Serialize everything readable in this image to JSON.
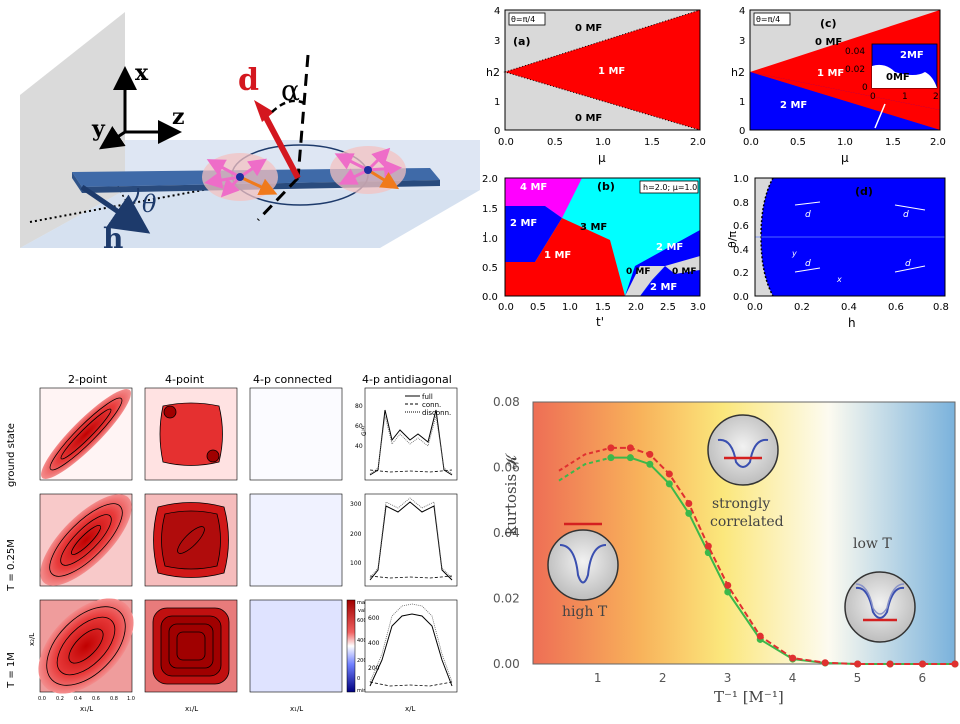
{
  "schematic": {
    "axis_x": "x",
    "axis_y": "y",
    "axis_z": "z",
    "vec_d": "d",
    "angle_alpha": "α",
    "angle_theta": "θ",
    "vec_h": "h"
  },
  "panel_a": {
    "tag": "θ=π/4",
    "label": "(a)",
    "xlabel": "μ",
    "h2": "h2",
    "xticks": [
      "0.0",
      "0.5",
      "1.0",
      "1.5",
      "2.0"
    ],
    "yticks": [
      "0",
      "1",
      "2",
      "3",
      "4"
    ],
    "regions": [
      "0 MF",
      "1 MF",
      "0 MF"
    ]
  },
  "panel_c": {
    "tag": "θ=π/4",
    "label": "(c)",
    "xlabel": "μ",
    "h2": "h2",
    "xticks": [
      "0.0",
      "0.5",
      "1.0",
      "1.5",
      "2.0"
    ],
    "yticks": [
      "0",
      "1",
      "2",
      "3",
      "4"
    ],
    "regions": [
      "0 MF",
      "1 MF",
      "2 MF"
    ],
    "inset": {
      "regions": [
        "2MF",
        "0MF"
      ],
      "yticks": [
        "0.04",
        "0.02",
        "0"
      ],
      "xticks": [
        "0",
        "1",
        "2"
      ]
    }
  },
  "panel_b": {
    "label": "(b)",
    "params": "h=2.0; μ=1.0",
    "xlabel": "t'",
    "ylabel": "'",
    "xticks": [
      "0.0",
      "0.5",
      "1.0",
      "1.5",
      "2.0",
      "2.5",
      "3.0"
    ],
    "yticks": [
      "0.0",
      "0.5",
      "1.0",
      "1.5",
      "2.0"
    ],
    "regions": [
      "4 MF",
      "2 MF",
      "3 MF",
      "1 MF",
      "2 MF",
      "0 MF",
      "0 MF",
      "2 MF"
    ]
  },
  "panel_d": {
    "label": "(d)",
    "xlabel": "h",
    "ylabel": "θ/π",
    "xticks": [
      "0.0",
      "0.2",
      "0.4",
      "0.6",
      "0.8"
    ],
    "yticks": [
      "0.0",
      "0.2",
      "0.4",
      "0.6",
      "0.8",
      "1.0"
    ],
    "vec": "d",
    "axis_x": "x",
    "axis_y": "y"
  },
  "grid": {
    "col_titles": [
      "2-point",
      "4-point",
      "4-p connected",
      "4-p antidiagonal"
    ],
    "row_labels": [
      "ground state",
      "T = 0.25M",
      "T = 1M"
    ],
    "legend": [
      "full",
      "conn.",
      "disconn."
    ],
    "ax_y": "x₂/L",
    "ax_x": "x₁/L",
    "ax_x_right": "x/L",
    "g_label": "G⁽⁴⁾",
    "ticks": [
      "0.0",
      "0.2",
      "0.4",
      "0.6",
      "0.8",
      "1.0"
    ],
    "row_ticks": [
      [
        "40",
        "60",
        "80"
      ],
      [
        "100",
        "200",
        "300"
      ],
      [
        "200",
        "400",
        "600"
      ]
    ],
    "cbar": [
      "max",
      "600",
      "400",
      "200",
      "0",
      "min"
    ],
    "cbar_label": "value"
  },
  "kurtosis": {
    "ylabel": "kurtosis 𝓚",
    "xlabel": "T⁻¹ [M⁻¹]",
    "yticks": [
      "0.00",
      "0.02",
      "0.04",
      "0.06",
      "0.08"
    ],
    "xticks": [
      "1",
      "2",
      "3",
      "4",
      "5",
      "6"
    ],
    "labels": {
      "high": "high T",
      "strong1": "strongly",
      "strong2": "correlated",
      "low": "low T"
    },
    "colors": {
      "green": "#3cb84a",
      "red": "#e03030"
    }
  },
  "chart_data": {
    "type": "line",
    "xlabel": "T⁻¹ [M⁻¹]",
    "ylabel": "kurtosis 𝓚",
    "xlim": [
      0,
      6.5
    ],
    "ylim": [
      0,
      0.08
    ],
    "series": [
      {
        "x": [
          0.4,
          0.8,
          1.2,
          1.5,
          1.8,
          2.1,
          2.4,
          2.7,
          3.0,
          3.5,
          4.0,
          4.5,
          5.0,
          5.5,
          6.0,
          6.5
        ],
        "values": [
          0.056,
          0.061,
          0.063,
          0.063,
          0.061,
          0.055,
          0.046,
          0.034,
          0.022,
          0.0075,
          0.0015,
          0.0003,
          0.0,
          0.0,
          0.0,
          0.0
        ]
      },
      {
        "x": [
          0.4,
          0.8,
          1.2,
          1.5,
          1.8,
          2.1,
          2.4,
          2.7,
          3.0,
          3.5,
          4.0,
          4.5,
          5.0,
          5.5,
          6.0,
          6.5
        ],
        "values": [
          0.059,
          0.064,
          0.066,
          0.066,
          0.064,
          0.058,
          0.049,
          0.036,
          0.024,
          0.0085,
          0.0018,
          0.0004,
          0.0,
          0.0,
          0.0,
          0.0
        ]
      }
    ]
  }
}
